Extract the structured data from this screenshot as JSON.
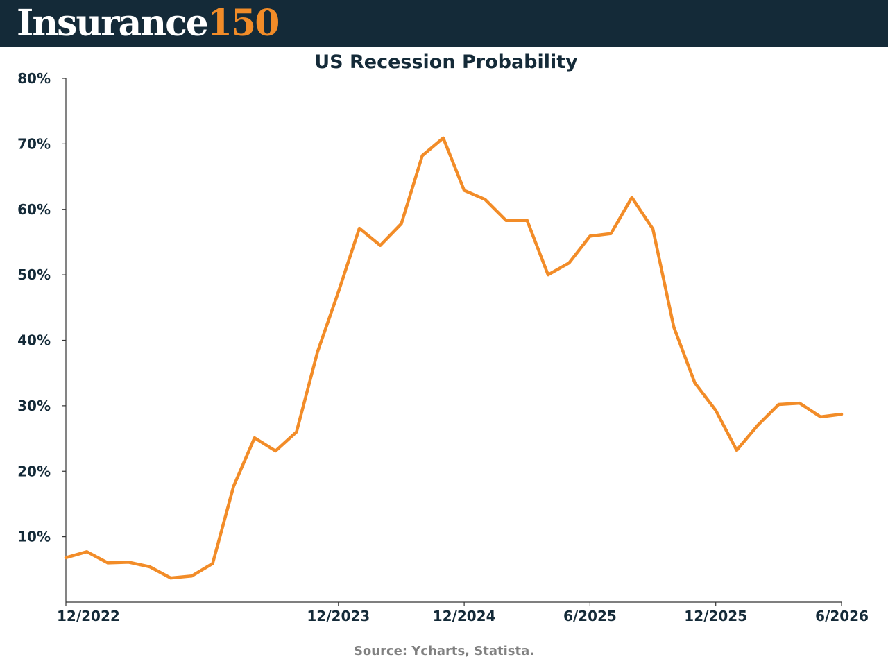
{
  "header": {
    "logo_word": "Insurance",
    "logo_number": "150",
    "background_color": "#142a38",
    "accent_color": "#f28c28"
  },
  "source": "Source: Ycharts, Statista.",
  "chart_data": {
    "type": "line",
    "title": "US Recession Probability",
    "xlabel": "",
    "ylabel": "",
    "ylim": [
      0,
      80
    ],
    "yticks": [
      10,
      20,
      30,
      40,
      50,
      60,
      70,
      80
    ],
    "ytick_labels": [
      "10%",
      "20%",
      "30%",
      "40%",
      "50%",
      "60%",
      "70%",
      "80%"
    ],
    "xtick_labels": [
      "12/2022",
      "12/2023",
      "12/2024",
      "6/2025",
      "12/2025",
      "6/2026"
    ],
    "xtick_point_index": [
      0,
      13,
      19,
      25,
      31,
      37
    ],
    "grid": false,
    "line_color": "#f28c28",
    "series": [
      {
        "values": [
          6.8,
          7.7,
          6.0,
          6.1,
          5.4,
          3.7,
          4.0,
          5.9,
          17.7,
          25.1,
          23.1,
          26.0,
          38.2,
          47.4,
          57.1,
          54.5,
          57.8,
          68.2,
          70.9,
          62.9,
          61.5,
          58.3,
          58.3,
          50.0,
          51.8,
          55.9,
          56.3,
          61.8,
          57.0,
          42.0,
          33.5,
          29.3,
          23.2,
          27.0,
          30.2,
          30.4,
          28.3,
          28.7
        ]
      }
    ]
  }
}
